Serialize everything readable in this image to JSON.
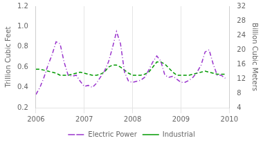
{
  "chart_data": {
    "type": "line",
    "title": "",
    "y_label": "Trillion Cubic Feet",
    "y2_label": "Billion Cubic Meters",
    "x": [
      2006.0,
      2006.083,
      2006.167,
      2006.25,
      2006.333,
      2006.417,
      2006.5,
      2006.583,
      2006.667,
      2006.75,
      2006.833,
      2006.917,
      2007.0,
      2007.083,
      2007.167,
      2007.25,
      2007.333,
      2007.417,
      2007.5,
      2007.583,
      2007.667,
      2007.75,
      2007.833,
      2007.917,
      2008.0,
      2008.083,
      2008.167,
      2008.25,
      2008.333,
      2008.417,
      2008.5,
      2008.583,
      2008.667,
      2008.75,
      2008.833,
      2008.917,
      2009.0,
      2009.083,
      2009.167,
      2009.25,
      2009.333,
      2009.417,
      2009.5,
      2009.583,
      2009.667,
      2009.75,
      2009.833,
      2009.917
    ],
    "series": [
      {
        "name": "Electric Power",
        "color": "#9933cc",
        "line_style": "dashdot",
        "marker": "none",
        "values": [
          0.33,
          0.4,
          0.5,
          0.62,
          0.72,
          0.85,
          0.83,
          0.65,
          0.52,
          0.51,
          0.52,
          0.46,
          0.41,
          0.42,
          0.4,
          0.44,
          0.5,
          0.56,
          0.65,
          0.79,
          0.95,
          0.83,
          0.55,
          0.46,
          0.45,
          0.46,
          0.47,
          0.5,
          0.57,
          0.65,
          0.71,
          0.66,
          0.52,
          0.5,
          0.51,
          0.48,
          0.45,
          0.45,
          0.47,
          0.5,
          0.55,
          0.62,
          0.75,
          0.77,
          0.63,
          0.52,
          0.52,
          0.49
        ]
      },
      {
        "name": "Industrial",
        "color": "#009900",
        "line_style": "dashed",
        "marker": "none",
        "values": [
          0.58,
          0.58,
          0.57,
          0.56,
          0.55,
          0.54,
          0.52,
          0.52,
          0.52,
          0.53,
          0.54,
          0.55,
          0.54,
          0.53,
          0.52,
          0.52,
          0.53,
          0.55,
          0.6,
          0.62,
          0.62,
          0.6,
          0.57,
          0.54,
          0.52,
          0.52,
          0.52,
          0.53,
          0.55,
          0.6,
          0.65,
          0.65,
          0.63,
          0.59,
          0.55,
          0.52,
          0.52,
          0.52,
          0.52,
          0.53,
          0.54,
          0.55,
          0.56,
          0.55,
          0.54,
          0.53,
          0.53,
          0.53
        ]
      }
    ],
    "xlim": [
      2006.0,
      2010.0
    ],
    "xticks": [
      2006,
      2007,
      2008,
      2009,
      2010
    ],
    "ylim": [
      0.2,
      1.2
    ],
    "yticks": [
      0.2,
      0.4,
      0.6,
      0.8,
      {
        "value": 1.0,
        "label": "1.0"
      },
      1.2
    ],
    "y2lim": [
      4,
      32
    ],
    "y2ticks": [
      4,
      8,
      12,
      16,
      20,
      24,
      28,
      32
    ],
    "grid": "x",
    "legend": "bottom"
  }
}
